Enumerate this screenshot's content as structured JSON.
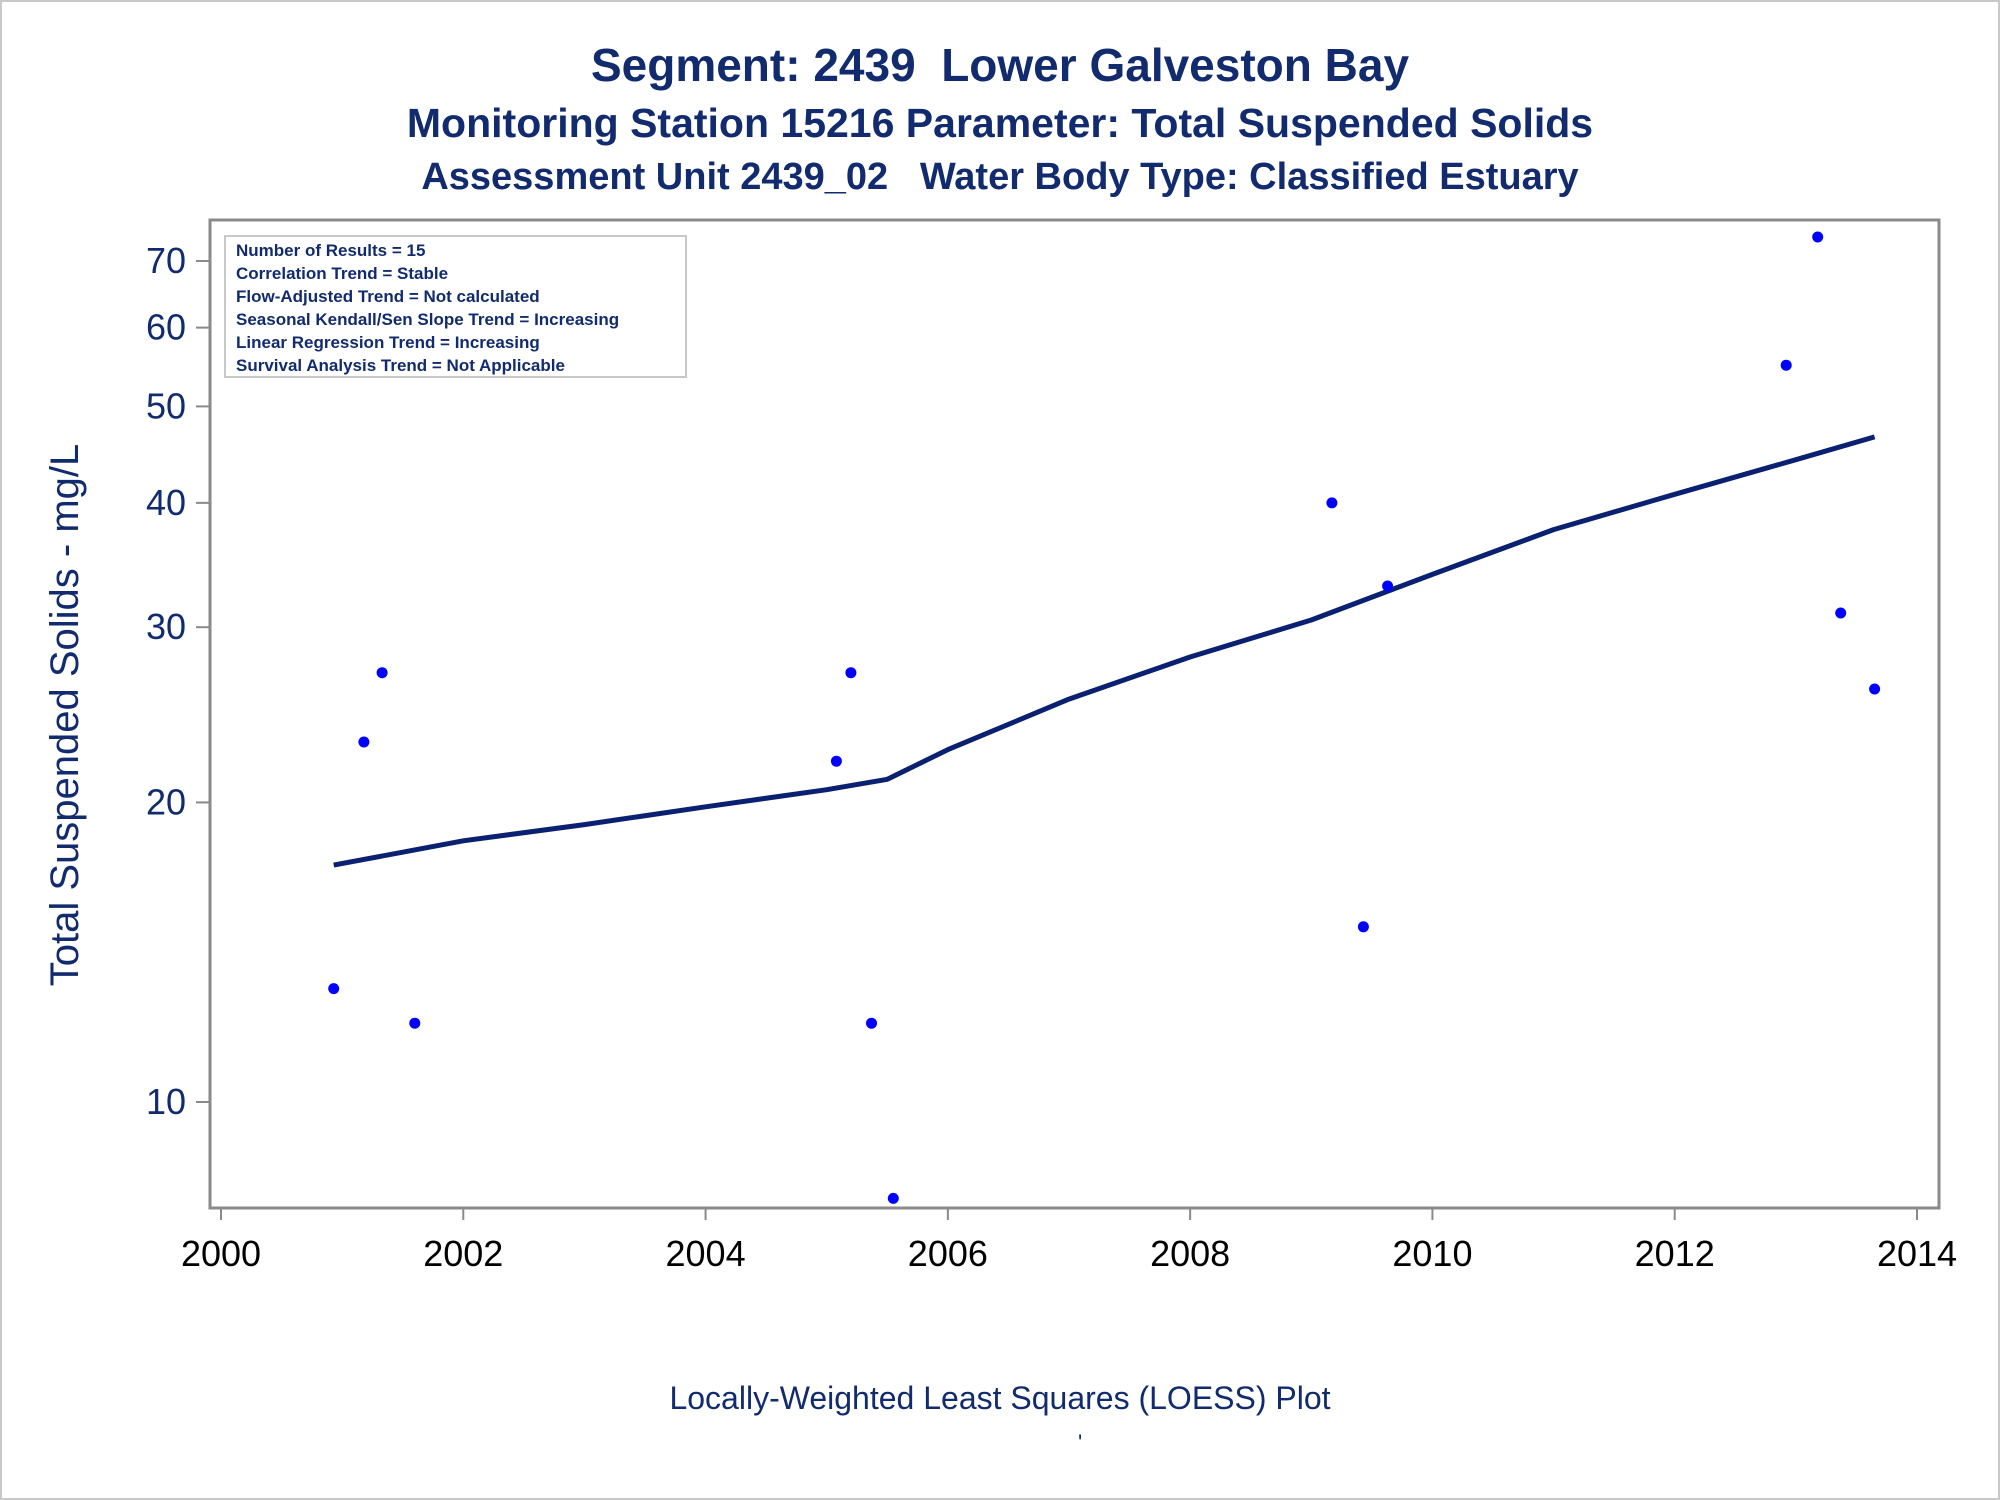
{
  "titles": {
    "line1": "Segment: 2439  Lower Galveston Bay",
    "line2": "Monitoring Station 15216 Parameter: Total Suspended Solids",
    "line3": "Assessment Unit 2439_02   Water Body Type: Classified Estuary"
  },
  "footnote": "Locally-Weighted Least Squares (LOESS) Plot",
  "footnote_mark": "'",
  "colors": {
    "text": "#112b6e",
    "points": "#0000ff",
    "trend_line": "#0a2070",
    "axis": "#8a8a8a",
    "legend_border": "#c8c8c8"
  },
  "stats_box": [
    "Number of Results = 15",
    "Correlation Trend = Stable",
    "Flow-Adjusted Trend = Not calculated",
    "Seasonal Kendall/Sen Slope Trend = Increasing",
    "Linear Regression Trend = Increasing",
    "Survival Analysis Trend = Not Applicable"
  ],
  "chart_data": {
    "type": "scatter",
    "ylabel": "Total Suspended Solids - mg/L",
    "xlabel": "",
    "xlim": [
      2000,
      2014
    ],
    "ylim": [
      8.6,
      77
    ],
    "yscale": "log",
    "x_ticks": [
      2000,
      2002,
      2004,
      2006,
      2008,
      2010,
      2012,
      2014
    ],
    "y_ticks": [
      10,
      20,
      30,
      40,
      50,
      60,
      70
    ],
    "series": [
      {
        "kind": "points",
        "points": [
          {
            "x": 2000.93,
            "y": 13
          },
          {
            "x": 2001.18,
            "y": 23
          },
          {
            "x": 2001.33,
            "y": 27
          },
          {
            "x": 2001.6,
            "y": 12
          },
          {
            "x": 2005.08,
            "y": 22
          },
          {
            "x": 2005.2,
            "y": 27
          },
          {
            "x": 2005.37,
            "y": 12
          },
          {
            "x": 2005.55,
            "y": 8
          },
          {
            "x": 2009.17,
            "y": 40
          },
          {
            "x": 2009.43,
            "y": 15
          },
          {
            "x": 2009.63,
            "y": 33
          },
          {
            "x": 2012.92,
            "y": 55
          },
          {
            "x": 2013.18,
            "y": 74
          },
          {
            "x": 2013.37,
            "y": 31
          },
          {
            "x": 2013.65,
            "y": 26
          }
        ]
      },
      {
        "kind": "loess_line",
        "points": [
          {
            "x": 2000.93,
            "y": 17.3
          },
          {
            "x": 2002.0,
            "y": 18.3
          },
          {
            "x": 2003.0,
            "y": 19.0
          },
          {
            "x": 2004.0,
            "y": 19.8
          },
          {
            "x": 2005.0,
            "y": 20.6
          },
          {
            "x": 2005.5,
            "y": 21.1
          },
          {
            "x": 2006.0,
            "y": 22.6
          },
          {
            "x": 2007.0,
            "y": 25.4
          },
          {
            "x": 2008.0,
            "y": 28.0
          },
          {
            "x": 2009.0,
            "y": 30.5
          },
          {
            "x": 2010.0,
            "y": 33.9
          },
          {
            "x": 2011.0,
            "y": 37.6
          },
          {
            "x": 2012.0,
            "y": 40.8
          },
          {
            "x": 2013.0,
            "y": 44.2
          },
          {
            "x": 2013.65,
            "y": 46.6
          }
        ]
      }
    ]
  }
}
